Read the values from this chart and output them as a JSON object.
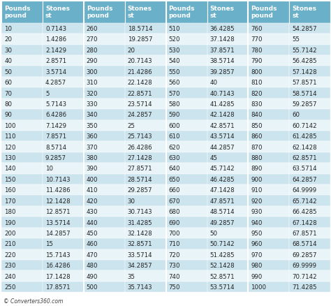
{
  "col_header_bg": "#6ab0c8",
  "col_header_text": "#ffffff",
  "row_even_bg": "#cce4ee",
  "row_odd_bg": "#e8f4f8",
  "fig_bg": "#ffffff",
  "text_color": "#222222",
  "header_fontsize": 6.5,
  "cell_fontsize": 6.2,
  "footer_text": "© Converters360.com",
  "columns": [
    {
      "header": "Pounds\npound"
    },
    {
      "header": "Stones\nst"
    },
    {
      "header": "Pounds\npound"
    },
    {
      "header": "Stones\nst"
    },
    {
      "header": "Pounds\npound"
    },
    {
      "header": "Stones\nst"
    },
    {
      "header": "Pounds\npound"
    },
    {
      "header": "Stones\nst"
    }
  ],
  "data": [
    [
      10,
      "0.7143",
      260,
      "18.5714",
      510,
      "36.4285",
      760,
      "54.2857"
    ],
    [
      20,
      "1.4286",
      270,
      "19.2857",
      520,
      "37.1428",
      770,
      "55"
    ],
    [
      30,
      "2.1429",
      280,
      "20",
      530,
      "37.8571",
      780,
      "55.7142"
    ],
    [
      40,
      "2.8571",
      290,
      "20.7143",
      540,
      "38.5714",
      790,
      "56.4285"
    ],
    [
      50,
      "3.5714",
      300,
      "21.4286",
      550,
      "39.2857",
      800,
      "57.1428"
    ],
    [
      60,
      "4.2857",
      310,
      "22.1428",
      560,
      "40",
      810,
      "57.8571"
    ],
    [
      70,
      "5",
      320,
      "22.8571",
      570,
      "40.7143",
      820,
      "58.5714"
    ],
    [
      80,
      "5.7143",
      330,
      "23.5714",
      580,
      "41.4285",
      830,
      "59.2857"
    ],
    [
      90,
      "6.4286",
      340,
      "24.2857",
      590,
      "42.1428",
      840,
      "60"
    ],
    [
      100,
      "7.1429",
      350,
      "25",
      600,
      "42.8571",
      850,
      "60.7142"
    ],
    [
      110,
      "7.8571",
      360,
      "25.7143",
      610,
      "43.5714",
      860,
      "61.4285"
    ],
    [
      120,
      "8.5714",
      370,
      "26.4286",
      620,
      "44.2857",
      870,
      "62.1428"
    ],
    [
      130,
      "9.2857",
      380,
      "27.1428",
      630,
      "45",
      880,
      "62.8571"
    ],
    [
      140,
      "10",
      390,
      "27.8571",
      640,
      "45.7142",
      890,
      "63.5714"
    ],
    [
      150,
      "10.7143",
      400,
      "28.5714",
      650,
      "46.4285",
      900,
      "64.2857"
    ],
    [
      160,
      "11.4286",
      410,
      "29.2857",
      660,
      "47.1428",
      910,
      "64.9999"
    ],
    [
      170,
      "12.1428",
      420,
      "30",
      670,
      "47.8571",
      920,
      "65.7142"
    ],
    [
      180,
      "12.8571",
      430,
      "30.7143",
      680,
      "48.5714",
      930,
      "66.4285"
    ],
    [
      190,
      "13.5714",
      440,
      "31.4285",
      690,
      "49.2857",
      940,
      "67.1428"
    ],
    [
      200,
      "14.2857",
      450,
      "32.1428",
      700,
      "50",
      950,
      "67.8571"
    ],
    [
      210,
      "15",
      460,
      "32.8571",
      710,
      "50.7142",
      960,
      "68.5714"
    ],
    [
      220,
      "15.7143",
      470,
      "33.5714",
      720,
      "51.4285",
      970,
      "69.2857"
    ],
    [
      230,
      "16.4286",
      480,
      "34.2857",
      730,
      "52.1428",
      980,
      "69.9999"
    ],
    [
      240,
      "17.1428",
      490,
      "35",
      740,
      "52.8571",
      990,
      "70.7142"
    ],
    [
      250,
      "17.8571",
      500,
      "35.7143",
      750,
      "53.5714",
      1000,
      "71.4285"
    ]
  ]
}
